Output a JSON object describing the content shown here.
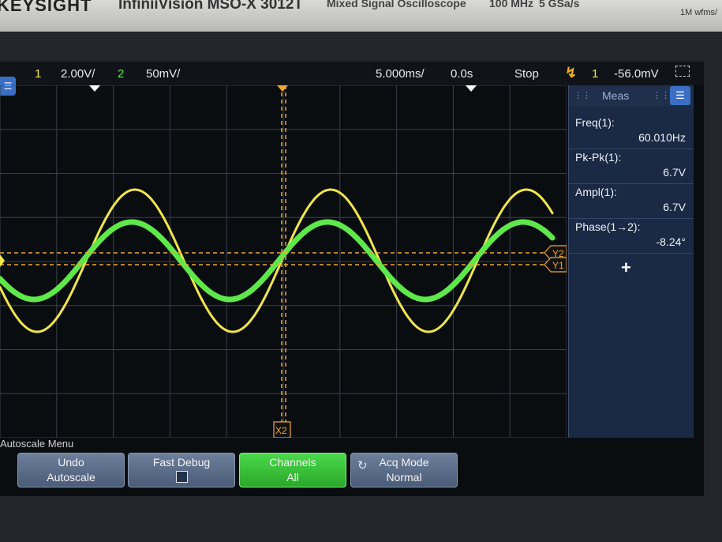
{
  "bezel": {
    "brand": "KEYSIGHT",
    "model": "InfiniiVision MSO-X 3012T",
    "type": "Mixed Signal Oscilloscope",
    "bandwidth": "100 MHz",
    "sample_rate": "5 GSa/s",
    "memory": "1M wfms/"
  },
  "status": {
    "ch1_num": "1",
    "ch1_scale": "2.00V/",
    "ch2_num": "2",
    "ch2_scale": "50mV/",
    "timebase": "5.000ms/",
    "delay": "0.0s",
    "run_state": "Stop",
    "trig_icon": "trigger-edge-icon",
    "trig_src": "1",
    "trig_level": "-56.0mV"
  },
  "markers": {
    "y1": "Y1",
    "y2": "Y2",
    "x2": "X2"
  },
  "meas": {
    "title": "Meas",
    "items": [
      {
        "label": "Freq(1):",
        "value": "60.010Hz"
      },
      {
        "label": "Pk-Pk(1):",
        "value": "6.7V"
      },
      {
        "label": "Ampl(1):",
        "value": "6.7V"
      },
      {
        "label": "Phase(1→2):",
        "value": "-8.24°"
      }
    ]
  },
  "softkeys": {
    "menu_title": "Autoscale Menu",
    "undo_l1": "Undo",
    "undo_l2": "Autoscale",
    "fast_debug": "Fast Debug",
    "channels_l1": "Channels",
    "channels_l2": "All",
    "acq_l1": "Acq Mode",
    "acq_l2": "Normal"
  },
  "colors": {
    "ch1": "#f0e64a",
    "ch2": "#5ee84a",
    "cursor": "#f0a832",
    "accent": "#3a6fc4"
  }
}
